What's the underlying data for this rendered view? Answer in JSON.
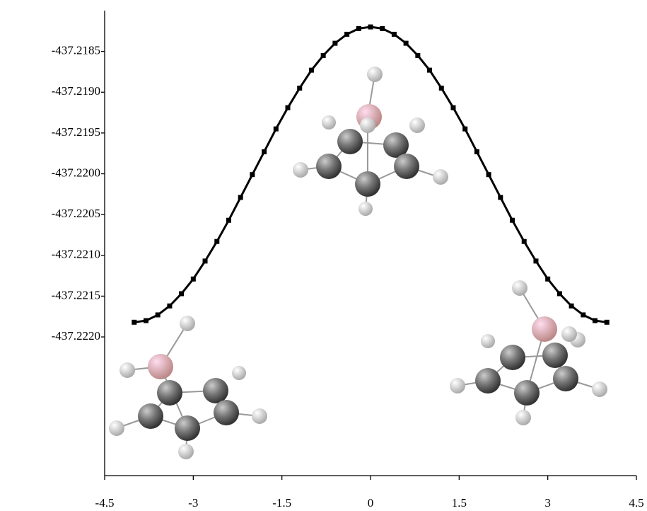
{
  "chart_data": {
    "type": "line",
    "x": [
      -4.0,
      -3.8,
      -3.6,
      -3.4,
      -3.2,
      -3.0,
      -2.8,
      -2.6,
      -2.4,
      -2.2,
      -2.0,
      -1.8,
      -1.6,
      -1.4,
      -1.2,
      -1.0,
      -0.8,
      -0.6,
      -0.4,
      -0.2,
      0,
      0.2,
      0.4,
      0.6,
      0.8,
      1.0,
      1.2,
      1.4,
      1.6,
      1.8,
      2.0,
      2.2,
      2.4,
      2.6,
      2.8,
      3.0,
      3.2,
      3.4,
      3.6,
      3.8,
      4.0
    ],
    "values": [
      -437.22182,
      -437.2218,
      -437.22173,
      -437.22162,
      -437.22147,
      -437.22129,
      -437.22107,
      -437.22083,
      -437.22057,
      -437.22029,
      -437.22001,
      -437.21973,
      -437.21945,
      -437.21919,
      -437.21895,
      -437.21873,
      -437.21855,
      -437.2184,
      -437.21829,
      -437.21822,
      -437.2182,
      -437.21822,
      -437.21829,
      -437.2184,
      -437.21855,
      -437.21873,
      -437.21895,
      -437.21919,
      -437.21945,
      -437.21973,
      -437.22001,
      -437.22029,
      -437.22057,
      -437.22083,
      -437.22107,
      -437.22129,
      -437.22147,
      -437.22162,
      -437.22173,
      -437.2218,
      -437.22182
    ],
    "color": "#000000",
    "xlim": [
      -4.5,
      4.5
    ],
    "xticks": [
      -4.5,
      -3,
      -1.5,
      0,
      1.5,
      3,
      4.5
    ],
    "ylim": [
      -437.2237,
      -437.218
    ],
    "yticks": [
      -437.2185,
      {
        "value": -437.219,
        "label": "-437.2190"
      },
      -437.2195,
      {
        "value": -437.22,
        "label": "-437.2200"
      },
      -437.2205,
      {
        "value": -437.221,
        "label": "-437.2210"
      },
      -437.2215,
      {
        "value": -437.222,
        "label": "-437.2220"
      }
    ],
    "grid": false
  }
}
